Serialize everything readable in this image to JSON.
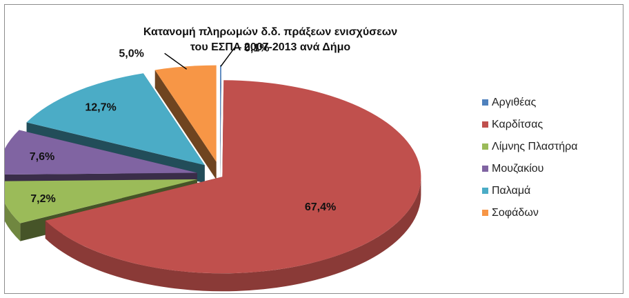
{
  "chart_data": {
    "type": "pie",
    "title": "Κατανομή πληρωμών δ.δ. πράξεων ενισχύσεων",
    "subtitle": "του ΕΣΠΑ 2007-2013 ανά Δήμο",
    "categories": [
      "Αργιθέας",
      "Καρδίτσας",
      "Λίμνης Πλαστήρα",
      "Μουζακίου",
      "Παλαμά",
      "Σοφάδων"
    ],
    "values": [
      0.1,
      67.4,
      7.2,
      7.6,
      12.7,
      5.0
    ],
    "labels": [
      "0,1%",
      "67,4%",
      "7,2%",
      "7,6%",
      "12,7%",
      "5,0%"
    ],
    "colors": [
      "#4f81bd",
      "#c0504d",
      "#9bbb59",
      "#8064a2",
      "#4bacc6",
      "#f79646"
    ],
    "legend_position": "right",
    "exploded": true,
    "three_d": true
  }
}
